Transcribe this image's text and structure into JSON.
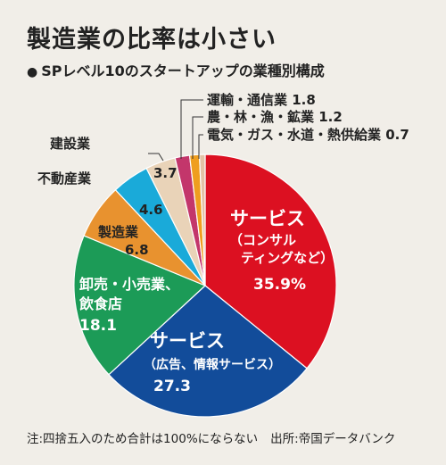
{
  "header": {
    "title": "製造業の比率は小さい",
    "bullet": "●",
    "subtitle": "SPレベル10のスタートアップの業種別構成"
  },
  "footnote": {
    "note": "注:四捨五入のため合計は100%にならない",
    "source": "出所:帝国データバンク"
  },
  "chart_data": {
    "type": "pie",
    "title": "SPレベル10のスタートアップの業種別構成",
    "unit": "%",
    "start_angle_deg": 0,
    "direction": "clockwise",
    "slices": [
      {
        "label": "サービス（コンサルティングなど）",
        "value": 35.9,
        "color": "#dc1021"
      },
      {
        "label": "サービス（広告、情報サービス）",
        "value": 27.3,
        "color": "#124c9a"
      },
      {
        "label": "卸売・小売業、飲食店",
        "value": 18.1,
        "color": "#1c9b57"
      },
      {
        "label": "製造業",
        "value": 6.8,
        "color": "#e8922f"
      },
      {
        "label": "不動産業",
        "value": 4.6,
        "color": "#1aaad9"
      },
      {
        "label": "建設業",
        "value": 3.7,
        "color": "#e9d3b8"
      },
      {
        "label": "運輸・通信業",
        "value": 1.8,
        "color": "#c3366b"
      },
      {
        "label": "農・林・漁・鉱業",
        "value": 1.2,
        "color": "#ef9e1f"
      },
      {
        "label": "電気・ガス・水道・熱供給業",
        "value": 0.7,
        "color": "#e3c2a6"
      }
    ],
    "labels": {
      "s1_line1": "サービス",
      "s1_line2": "（コンサル",
      "s1_line3": "ティングなど）",
      "s1_value": "35.9%",
      "s2_line1": "サービス",
      "s2_line2": "（広告、情報サービス）",
      "s2_value": "27.3",
      "s3_line1": "卸売・小売業、",
      "s3_line2": "飲食店",
      "s3_value": "18.1",
      "s4_line1": "製造業",
      "s4_value": "6.8",
      "s5_name": "不動産業",
      "s5_value": "4.6",
      "s6_name": "建設業",
      "s6_value": "3.7",
      "s7": "運輸・通信業 1.8",
      "s8": "農・林・漁・鉱業 1.2",
      "s9": "電気・ガス・水道・熱供給業 0.7"
    }
  }
}
